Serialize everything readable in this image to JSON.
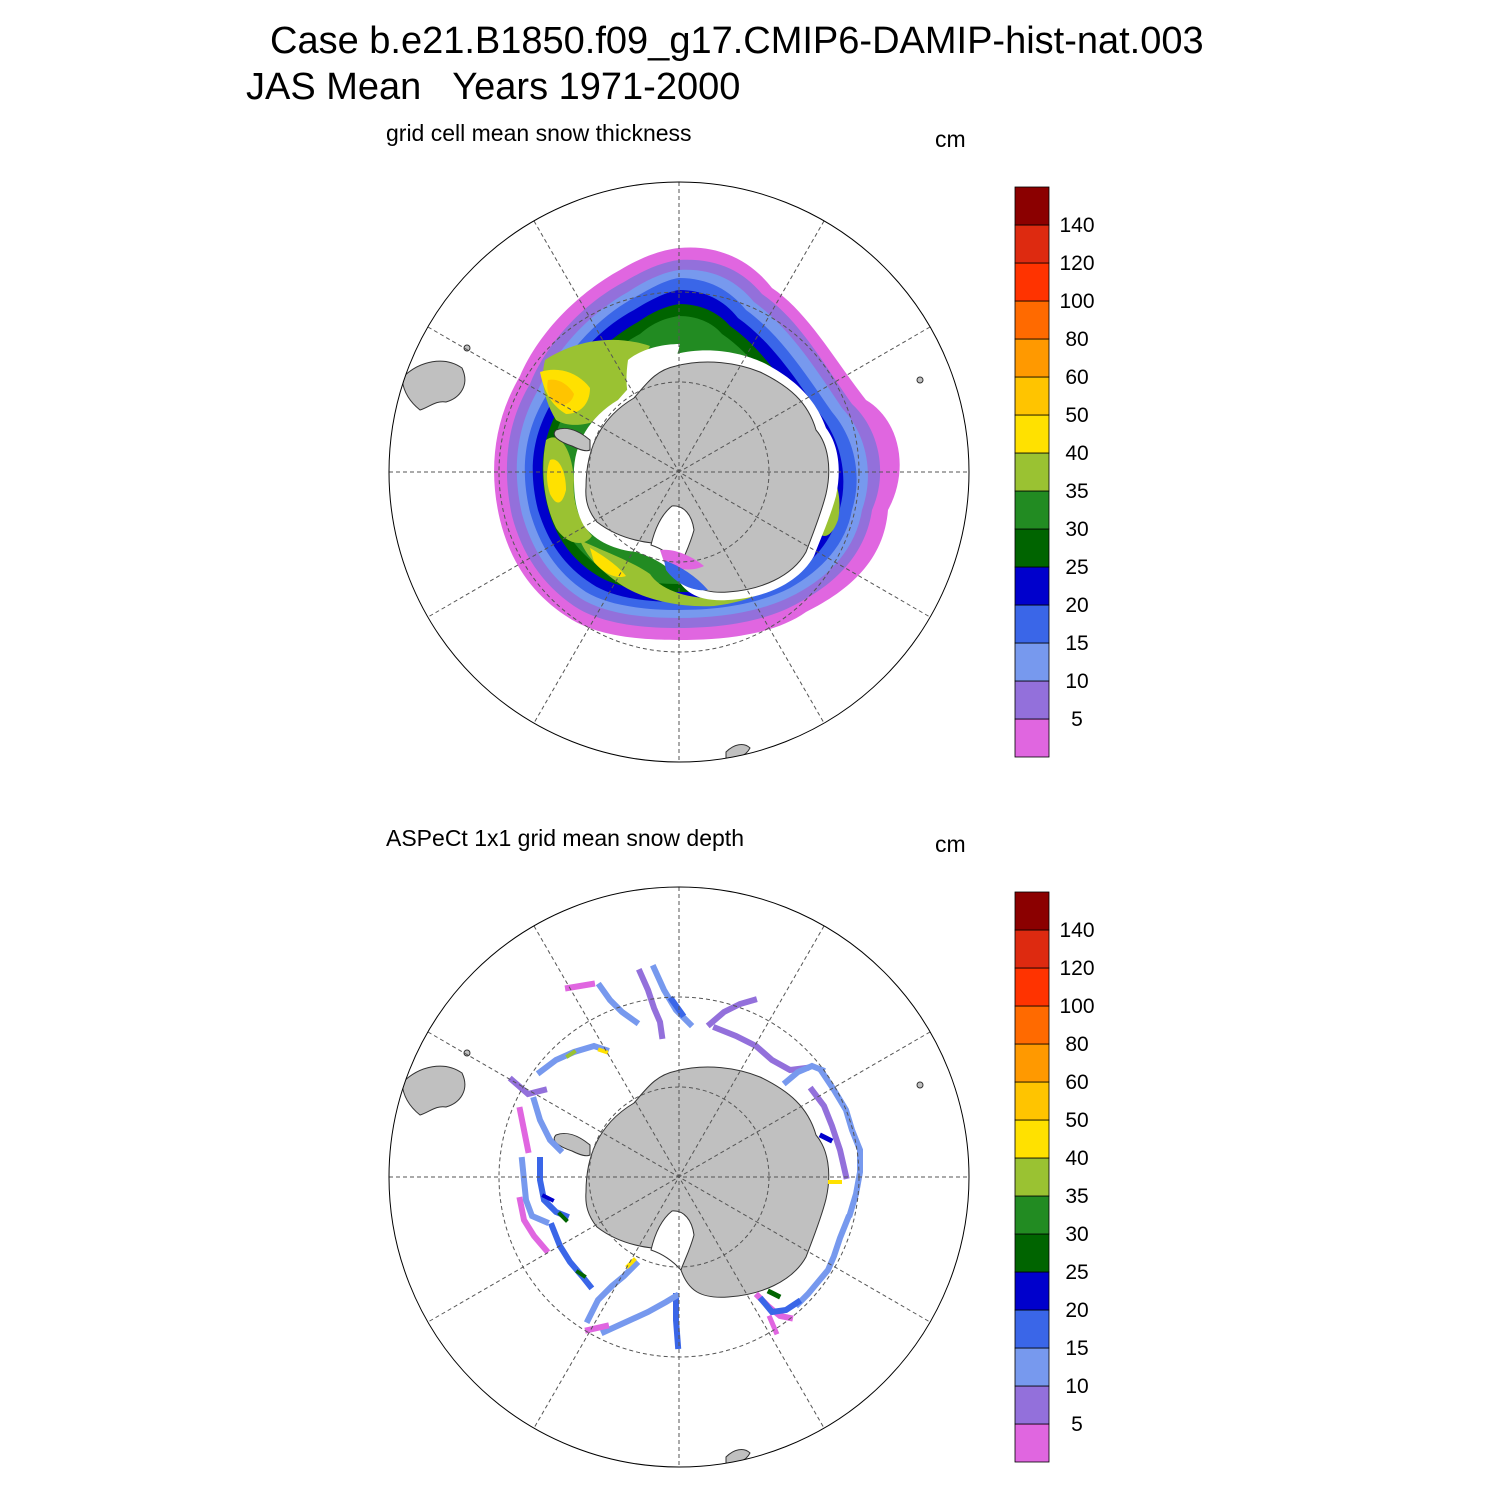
{
  "header": {
    "line1": "Case b.e21.B1850.f09_g17.CMIP6-DAMIP-hist-nat.003",
    "line2": "JAS Mean   Years 1971-2000"
  },
  "panels": [
    {
      "title": "grid cell mean snow thickness",
      "units": "cm"
    },
    {
      "title": "ASPeCt 1x1 grid mean snow depth",
      "units": "cm"
    }
  ],
  "colorbar": {
    "labels": [
      "5",
      "10",
      "15",
      "20",
      "25",
      "30",
      "35",
      "40",
      "50",
      "60",
      "80",
      "100",
      "120",
      "140"
    ],
    "colors": [
      "#e066e0",
      "#9370db",
      "#7799ee",
      "#3a66e8",
      "#0000cc",
      "#006400",
      "#228b22",
      "#9ac232",
      "#ffe100",
      "#ffc400",
      "#ff9900",
      "#ff6a00",
      "#ff3300",
      "#dd2a10",
      "#8b0000"
    ]
  },
  "colors": {
    "land": "#c0c0c0",
    "grid": "#555555"
  }
}
